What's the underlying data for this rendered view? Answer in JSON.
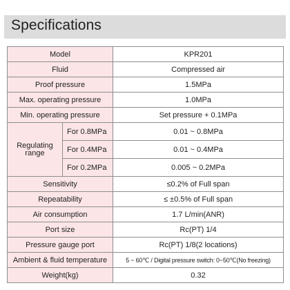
{
  "title": "Specifications",
  "rows": {
    "model": {
      "label": "Model",
      "value": "KPR201"
    },
    "fluid": {
      "label": "Fluid",
      "value": "Compressed air"
    },
    "proof_pressure": {
      "label": "Proof pressure",
      "value": "1.5MPa"
    },
    "max_operating_pressure": {
      "label": "Max. operating pressure",
      "value": "1.0MPa"
    },
    "min_operating_pressure": {
      "label": "Min. operating pressure",
      "value": "Set pressure + 0.1MPa"
    },
    "regulating_range": {
      "label": "Regulating range",
      "items": [
        {
          "condition": "For 0.8MPa",
          "value": "0.01 ~ 0.8MPa"
        },
        {
          "condition": "For 0.4MPa",
          "value": "0.01 ~ 0.4MPa"
        },
        {
          "condition": "For 0.2MPa",
          "value": "0.005 ~ 0.2MPa"
        }
      ]
    },
    "sensitivity": {
      "label": "Sensitivity",
      "value": "≤0.2% of Full span"
    },
    "repeatability": {
      "label": "Repeatability",
      "value": "≤ ±0.5% of Full span"
    },
    "air_consumption": {
      "label": "Air consumption",
      "value": "1.7 L/min(ANR)"
    },
    "port_size": {
      "label": "Port size",
      "value": "Rc(PT) 1/4"
    },
    "pressure_gauge_port": {
      "label": "Pressure gauge port",
      "value": "Rc(PT) 1/8(2 locations)"
    },
    "ambient_fluid_temperature": {
      "label": "Ambient & fluid temperature",
      "value": "5 ~ 60℃ / Digital pressure switch: 0~50℃(No freezing)"
    },
    "weight": {
      "label": "Weight(kg)",
      "value": "0.32"
    }
  },
  "colors": {
    "label_bg": "#fbe5e7",
    "title_bg": "#dcdcdc",
    "border": "#8e8e8e"
  }
}
